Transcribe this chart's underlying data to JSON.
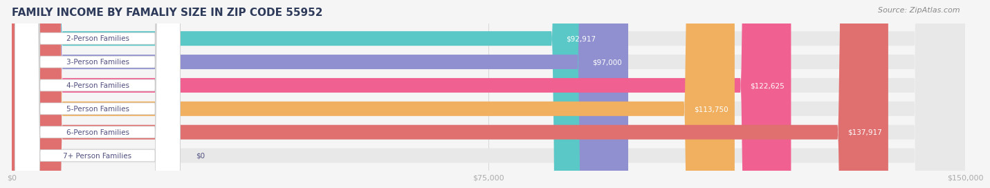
{
  "title": "FAMILY INCOME BY FAMALIY SIZE IN ZIP CODE 55952",
  "source": "Source: ZipAtlas.com",
  "categories": [
    "2-Person Families",
    "3-Person Families",
    "4-Person Families",
    "5-Person Families",
    "6-Person Families",
    "7+ Person Families"
  ],
  "values": [
    92917,
    97000,
    122625,
    113750,
    137917,
    0
  ],
  "bar_colors": [
    "#5BC8C8",
    "#9090D0",
    "#F06090",
    "#F0B060",
    "#E07070",
    "#A0C0E0"
  ],
  "value_labels": [
    "$92,917",
    "$97,000",
    "$122,625",
    "$113,750",
    "$137,917",
    "$0"
  ],
  "x_ticks": [
    0,
    75000,
    150000
  ],
  "x_tick_labels": [
    "$0",
    "$75,000",
    "$150,000"
  ],
  "xlim": [
    0,
    150000
  ],
  "title_color": "#2D3A5A",
  "title_fontsize": 11,
  "source_fontsize": 8,
  "bar_label_fontsize": 7.5,
  "value_label_fontsize": 7.5,
  "background_color": "#F5F5F5",
  "bar_bg_color": "#E8E8E8"
}
